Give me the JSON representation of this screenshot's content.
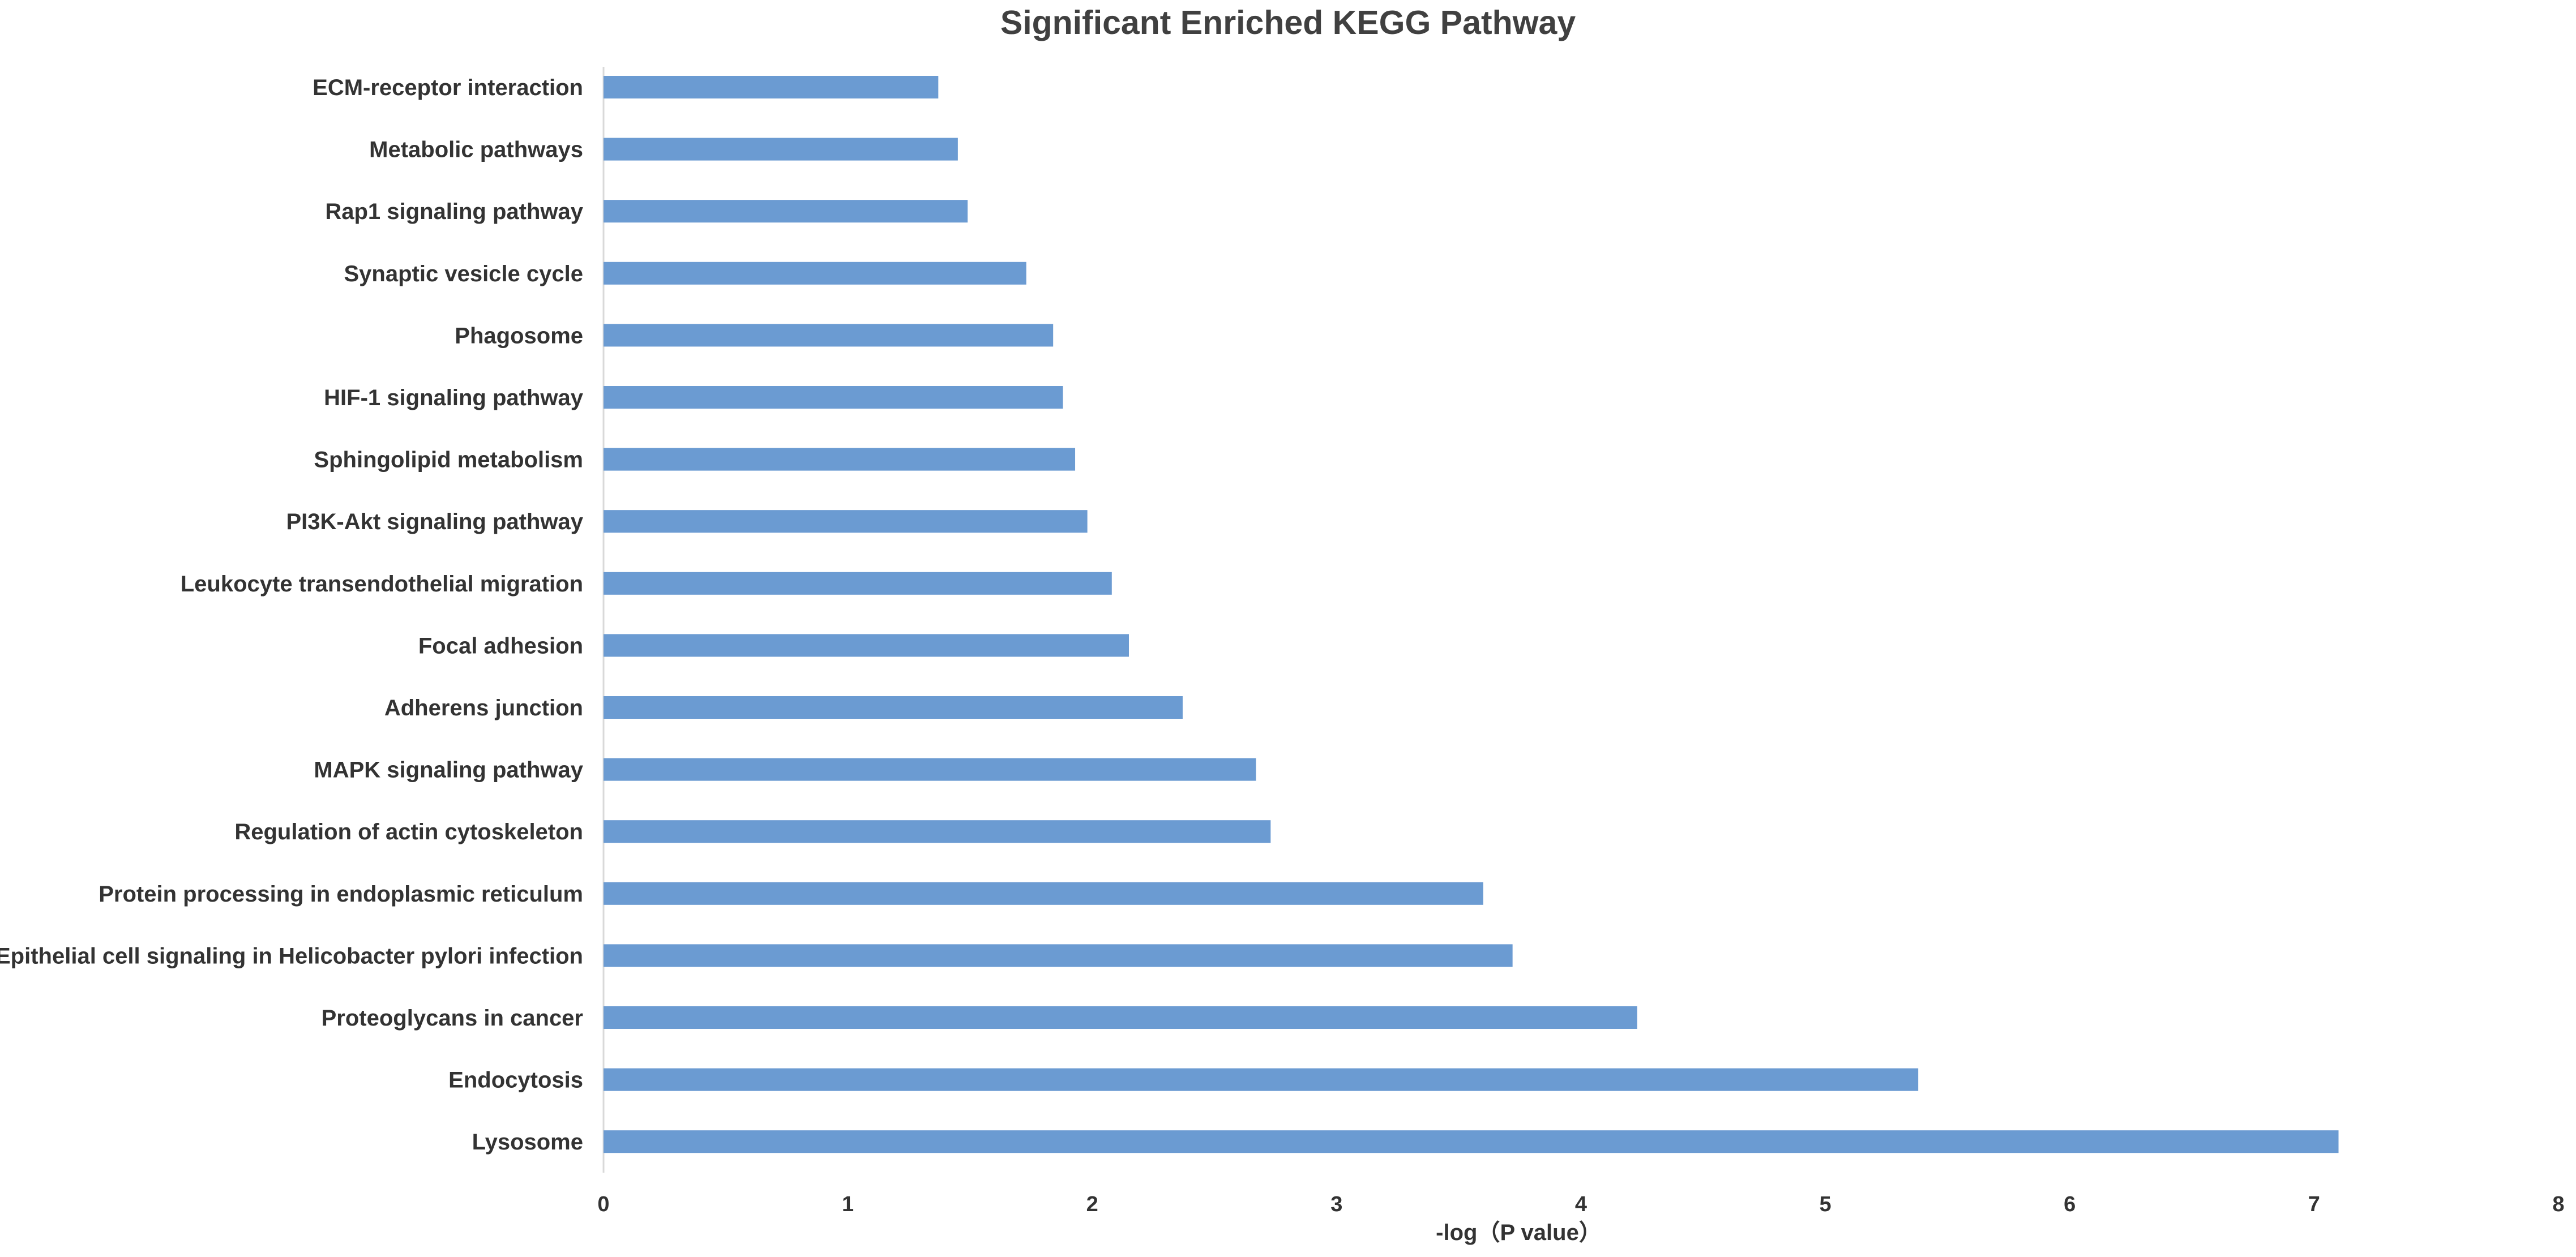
{
  "chart_data": {
    "type": "bar",
    "orientation": "horizontal",
    "title": "Significant Enriched KEGG Pathway",
    "xlabel": "-log（P value）",
    "ylabel": "",
    "xlim": [
      0,
      8
    ],
    "xticks": [
      "0",
      "1",
      "2",
      "3",
      "4",
      "5",
      "6",
      "7",
      "8"
    ],
    "grid": false,
    "bar_color": "#6b9bd2",
    "categories": [
      "ECM-receptor interaction",
      "Metabolic pathways",
      "Rap1 signaling pathway",
      "Synaptic vesicle cycle",
      "Phagosome",
      "HIF-1 signaling pathway",
      "Sphingolipid metabolism",
      "PI3K-Akt signaling pathway",
      "Leukocyte transendothelial migration",
      "Focal adhesion",
      "Adherens junction",
      "MAPK signaling pathway",
      "Regulation of actin cytoskeleton",
      "Protein processing in endoplasmic reticulum",
      "Epithelial cell signaling in Helicobacter pylori infection",
      "Proteoglycans in cancer",
      "Endocytosis",
      "Lysosome"
    ],
    "values": [
      1.37,
      1.45,
      1.49,
      1.73,
      1.84,
      1.88,
      1.93,
      1.98,
      2.08,
      2.15,
      2.37,
      2.67,
      2.73,
      3.6,
      3.72,
      4.23,
      5.38,
      7.1
    ]
  }
}
